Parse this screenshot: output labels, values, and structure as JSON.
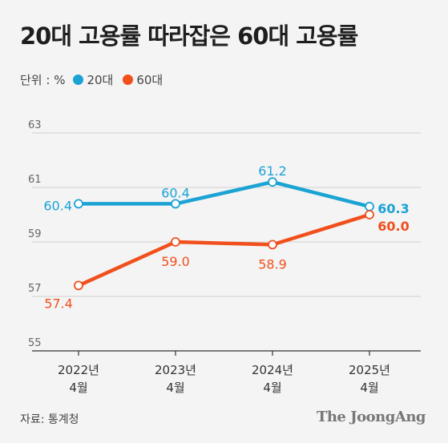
{
  "header": {
    "title": "20대 고용률 따라잡은 60대 고용률"
  },
  "legend": {
    "unit": "단위 : %"
  },
  "footer": {
    "source": "자료: 통계청",
    "brand": "The JoongAng"
  },
  "chart_data": {
    "type": "line",
    "title": "20대 고용률 따라잡은 60대 고용률",
    "unit": "%",
    "categories": [
      [
        "2022년",
        "4월"
      ],
      [
        "2023년",
        "4월"
      ],
      [
        "2024년",
        "4월"
      ],
      [
        "2025년",
        "4월"
      ]
    ],
    "ylim": [
      55,
      63
    ],
    "yticks": [
      55,
      57,
      59,
      61,
      63
    ],
    "grid": true,
    "legend_position": "top-left",
    "series": [
      {
        "name": "20대",
        "color": "#1ba3d4",
        "values": [
          60.4,
          60.4,
          61.2,
          60.3
        ],
        "labels": [
          "60.4",
          "60.4",
          "61.2",
          "60.3"
        ]
      },
      {
        "name": "60대",
        "color": "#f1501d",
        "values": [
          57.4,
          59.0,
          58.9,
          60.0
        ],
        "labels": [
          "57.4",
          "59.0",
          "58.9",
          "60.0"
        ]
      }
    ]
  }
}
